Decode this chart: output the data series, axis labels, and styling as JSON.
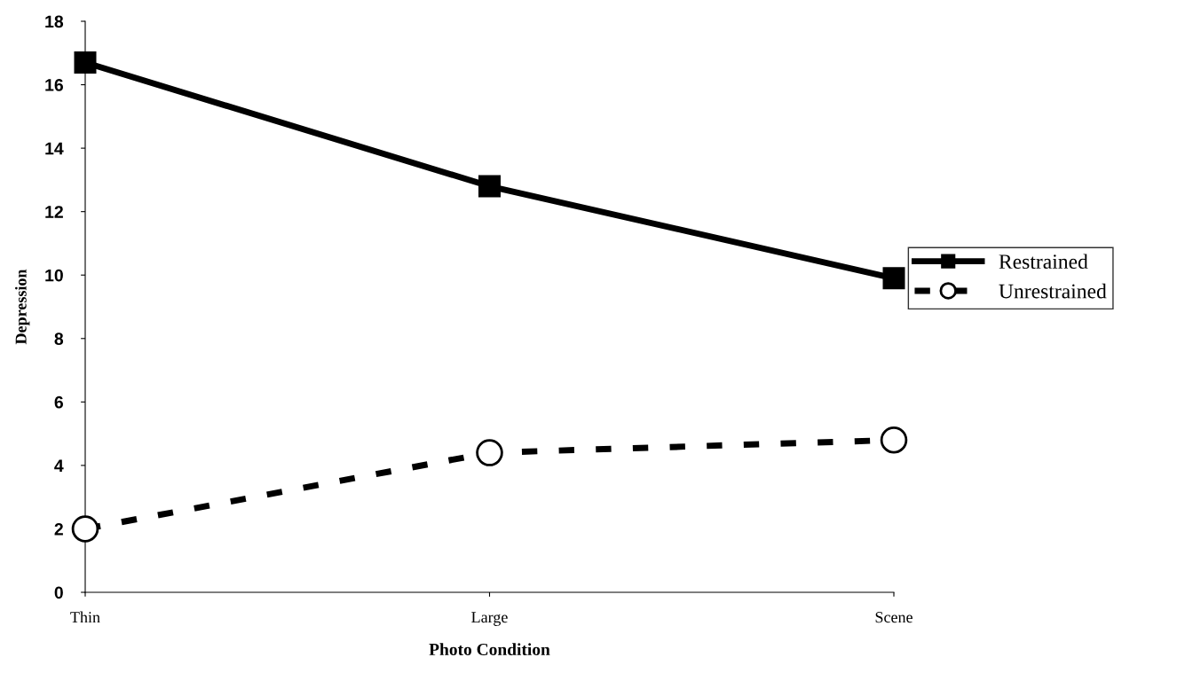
{
  "chart_data": {
    "type": "line",
    "xlabel": "Photo Condition",
    "ylabel": "Depression",
    "categories": [
      "Thin",
      "Large",
      "Scene"
    ],
    "series": [
      {
        "name": "Restrained",
        "color": "#000000",
        "values": [
          16.7,
          12.8,
          9.9
        ],
        "marker": "square",
        "line_style": "solid"
      },
      {
        "name": "Unrestrained",
        "color": "#000000",
        "values": [
          2.0,
          4.4,
          4.8
        ],
        "marker": "circle",
        "line_style": "dashed"
      }
    ],
    "ylim": [
      0,
      18
    ],
    "yticks": [
      0,
      2,
      4,
      6,
      8,
      10,
      12,
      14,
      16,
      18
    ],
    "grid": false,
    "legend": "right"
  }
}
